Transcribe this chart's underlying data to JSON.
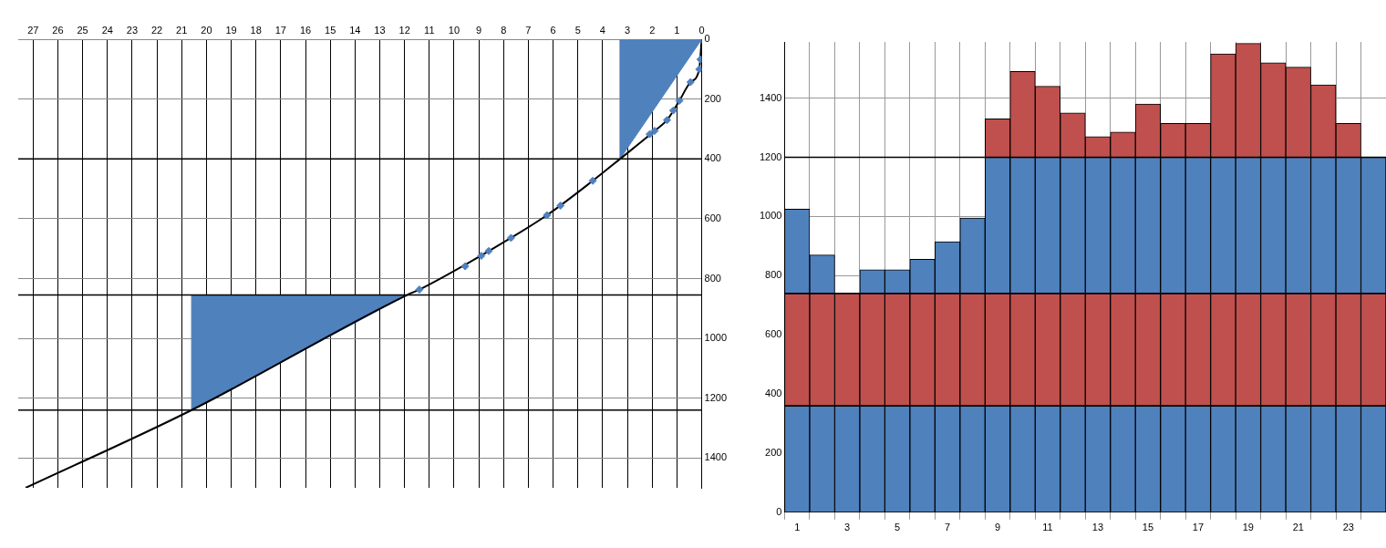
{
  "chart_data": [
    {
      "type": "line",
      "xlim": [
        27.6,
        0
      ],
      "xticks": [
        27,
        26,
        25,
        24,
        23,
        22,
        21,
        20,
        19,
        18,
        17,
        16,
        15,
        14,
        13,
        12,
        11,
        10,
        9,
        8,
        7,
        6,
        5,
        4,
        3,
        2,
        1,
        0
      ],
      "ylim": [
        1500,
        0
      ],
      "yticks": [
        0,
        200,
        400,
        600,
        800,
        1000,
        1200,
        1400
      ],
      "grid": true,
      "legend": false,
      "series": [
        {
          "type": "area",
          "color": "#4f81bd",
          "x": [
            3.3,
            0,
            3.3,
            3.3
          ],
          "values": [
            0,
            0,
            400,
            0
          ]
        },
        {
          "type": "area",
          "color": "#4f81bd",
          "x": [
            20.6,
            11.9,
            20.6,
            20.6
          ],
          "values": [
            855,
            855,
            1240,
            855
          ]
        },
        {
          "type": "line",
          "color": "#000000",
          "marker": "none",
          "line_style": "solid",
          "x": [
            0,
            0.1,
            0.45,
            0.9,
            1.4,
            1.9,
            3.3,
            4.4,
            6.25,
            8.6,
            11.4,
            11.9,
            20.6,
            27.3
          ],
          "values": [
            0,
            100,
            143,
            205,
            270,
            306,
            400,
            473,
            588,
            708,
            837,
            855,
            1240,
            1500
          ]
        },
        {
          "type": "scatter",
          "color": "#4f81bd",
          "marker": "diamond",
          "x": [
            0,
            0.05,
            0.1,
            0.45,
            0.9,
            1.15,
            1.4,
            1.9,
            2.1,
            4.4,
            5.7,
            6.25,
            7.7,
            8.6,
            8.9,
            9.55,
            11.4
          ],
          "values": [
            0,
            67,
            100,
            143,
            205,
            238,
            270,
            306,
            317,
            473,
            556,
            588,
            664,
            708,
            724,
            759,
            837
          ]
        }
      ],
      "ref_lines": [
        {
          "axis": "y",
          "value": 400,
          "color": "#000000"
        },
        {
          "axis": "y",
          "value": 855,
          "color": "#000000"
        },
        {
          "axis": "y",
          "value": 1240,
          "color": "#000000"
        }
      ]
    },
    {
      "type": "bar",
      "stacked": true,
      "categories": [
        "1",
        null,
        "3",
        null,
        "5",
        null,
        "7",
        null,
        "9",
        null,
        "11",
        null,
        "13",
        null,
        "15",
        null,
        "17",
        null,
        "19",
        null,
        "21",
        null,
        "23",
        null
      ],
      "ylim": [
        0,
        1590
      ],
      "yticks": [
        0,
        200,
        400,
        600,
        800,
        1000,
        1200,
        1400
      ],
      "grid": true,
      "legend": false,
      "series": [
        {
          "color": "#4f81bd",
          "values": [
            360,
            360,
            360,
            360,
            360,
            360,
            360,
            360,
            360,
            360,
            360,
            360,
            360,
            360,
            360,
            360,
            360,
            360,
            360,
            360,
            360,
            360,
            360,
            360
          ]
        },
        {
          "color": "#c0504d",
          "values": [
            380,
            380,
            380,
            380,
            380,
            380,
            380,
            380,
            380,
            380,
            380,
            380,
            380,
            380,
            380,
            380,
            380,
            380,
            380,
            380,
            380,
            380,
            380,
            380
          ]
        },
        {
          "color": "#4f81bd",
          "values": [
            285,
            130,
            null,
            80,
            80,
            115,
            175,
            255,
            460,
            460,
            460,
            460,
            460,
            460,
            460,
            460,
            460,
            460,
            460,
            460,
            460,
            460,
            460,
            460
          ]
        },
        {
          "color": "#c0504d",
          "values": [
            null,
            null,
            null,
            null,
            null,
            null,
            null,
            null,
            130,
            290,
            240,
            150,
            70,
            85,
            180,
            115,
            115,
            350,
            385,
            320,
            305,
            245,
            115,
            null
          ]
        }
      ],
      "ref_lines": [
        {
          "axis": "y",
          "value": 360,
          "color": "#000000"
        },
        {
          "axis": "y",
          "value": 740,
          "color": "#000000"
        },
        {
          "axis": "y",
          "value": 1200,
          "color": "#000000"
        }
      ]
    }
  ]
}
